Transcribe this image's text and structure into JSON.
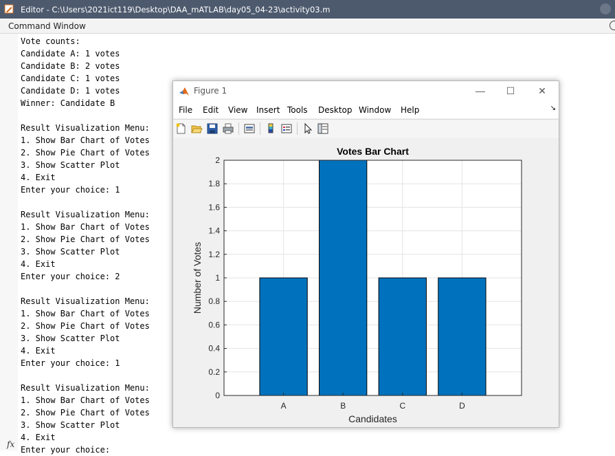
{
  "editor": {
    "title": "Editor - C:\\Users\\2021ict119\\Desktop\\DAA_mATLAB\\day05_04-23\\activity03.m"
  },
  "command_window": {
    "title": "Command Window",
    "prompt_symbol": "fx",
    "lines": [
      "Vote counts:",
      "Candidate A: 1 votes",
      "Candidate B: 2 votes",
      "Candidate C: 1 votes",
      "Candidate D: 1 votes",
      "Winner: Candidate B",
      "",
      "Result Visualization Menu:",
      "1. Show Bar Chart of Votes",
      "2. Show Pie Chart of Votes",
      "3. Show Scatter Plot",
      "4. Exit",
      "Enter your choice: 1",
      "",
      "Result Visualization Menu:",
      "1. Show Bar Chart of Votes",
      "2. Show Pie Chart of Votes",
      "3. Show Scatter Plot",
      "4. Exit",
      "Enter your choice: 2",
      "",
      "Result Visualization Menu:",
      "1. Show Bar Chart of Votes",
      "2. Show Pie Chart of Votes",
      "3. Show Scatter Plot",
      "4. Exit",
      "Enter your choice: 1",
      "",
      "Result Visualization Menu:",
      "1. Show Bar Chart of Votes",
      "2. Show Pie Chart of Votes",
      "3. Show Scatter Plot",
      "4. Exit",
      "Enter your choice:"
    ]
  },
  "figure": {
    "title": "Figure 1",
    "menu": [
      "File",
      "Edit",
      "View",
      "Insert",
      "Tools",
      "Desktop",
      "Window",
      "Help"
    ],
    "toolbar_icons": [
      "new-figure-icon",
      "open-file-icon",
      "save-icon",
      "print-icon",
      "link-plot-icon",
      "colorbar-icon",
      "legend-icon",
      "edit-plot-icon",
      "property-inspector-icon"
    ]
  },
  "chart_data": {
    "type": "bar",
    "title": "Votes Bar Chart",
    "xlabel": "Candidates",
    "ylabel": "Number of Votes",
    "categories": [
      "A",
      "B",
      "C",
      "D"
    ],
    "values": [
      1,
      2,
      1,
      1
    ],
    "ylim": [
      0,
      2
    ],
    "yticks": [
      0,
      0.2,
      0.4,
      0.6,
      0.8,
      1,
      1.2,
      1.4,
      1.6,
      1.8,
      2
    ],
    "xlim": [
      0,
      5
    ],
    "grid": true,
    "bar_color": "#0072BD"
  }
}
